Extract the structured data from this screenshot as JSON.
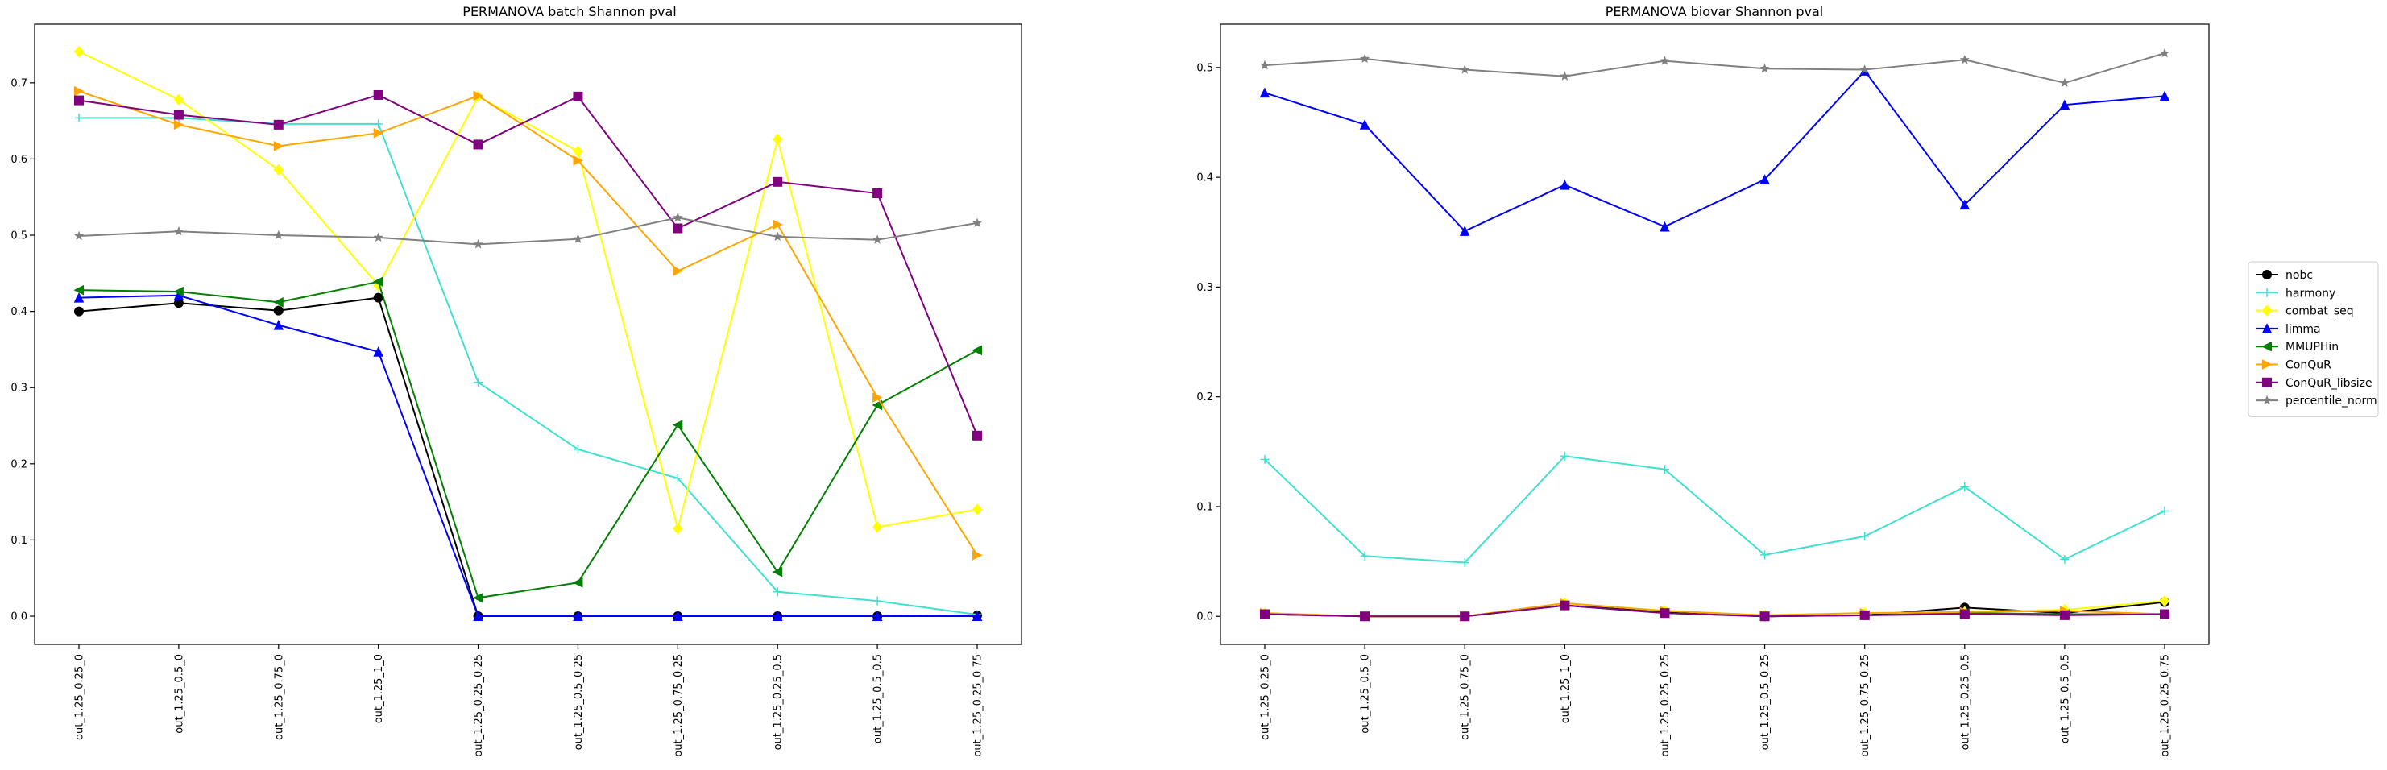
{
  "chart_data": [
    {
      "type": "line",
      "title": "PERMANOVA batch Shannon pval",
      "xlabel": "",
      "ylabel": "",
      "categories": [
        "out_1.25_0.25_0",
        "out_1.25_0.5_0",
        "out_1.25_0.75_0",
        "out_1.25_1_0",
        "out_1.25_0.25_0.25",
        "out_1.25_0.5_0.25",
        "out_1.25_0.75_0.25",
        "out_1.25_0.25_0.5",
        "out_1.25_0.5_0.5",
        "out_1.25_0.25_0.75"
      ],
      "ylim": [
        -0.037,
        0.777
      ],
      "yticks": [
        0.0,
        0.1,
        0.2,
        0.3,
        0.4,
        0.5,
        0.6,
        0.7
      ],
      "ytick_labels": [
        "0.0",
        "0.1",
        "0.2",
        "0.3",
        "0.4",
        "0.5",
        "0.6",
        "0.7"
      ],
      "series": [
        {
          "name": "nobc",
          "color": "#000000",
          "marker": "circle",
          "values": [
            0.4,
            0.411,
            0.401,
            0.418,
            0.0,
            0.0,
            0.0,
            0.0,
            0.0,
            0.001
          ]
        },
        {
          "name": "harmony",
          "color": "#40e0d0",
          "marker": "plus",
          "values": [
            0.654,
            0.654,
            0.646,
            0.646,
            0.307,
            0.219,
            0.181,
            0.032,
            0.02,
            0.002
          ]
        },
        {
          "name": "combat_seq",
          "color": "#ffff00",
          "marker": "diamond",
          "values": [
            0.741,
            0.678,
            0.586,
            0.434,
            0.682,
            0.61,
            0.115,
            0.626,
            0.117,
            0.14
          ]
        },
        {
          "name": "limma",
          "color": "#0000ff",
          "marker": "triangle-up",
          "values": [
            0.418,
            0.421,
            0.382,
            0.347,
            0.0,
            0.0,
            0.0,
            0.0,
            0.0,
            0.0
          ]
        },
        {
          "name": "MMUPHin",
          "color": "#008000",
          "marker": "triangle-left",
          "values": [
            0.428,
            0.426,
            0.412,
            0.439,
            0.024,
            0.044,
            0.251,
            0.058,
            0.277,
            0.349
          ]
        },
        {
          "name": "ConQuR",
          "color": "#ffa500",
          "marker": "triangle-right",
          "values": [
            0.689,
            0.645,
            0.617,
            0.634,
            0.683,
            0.598,
            0.453,
            0.514,
            0.287,
            0.08
          ]
        },
        {
          "name": "ConQuR_libsize",
          "color": "#800080",
          "marker": "square",
          "values": [
            0.677,
            0.658,
            0.645,
            0.684,
            0.619,
            0.682,
            0.509,
            0.57,
            0.555,
            0.237
          ]
        },
        {
          "name": "percentile_norm",
          "color": "#808080",
          "marker": "star",
          "values": [
            0.499,
            0.505,
            0.5,
            0.497,
            0.488,
            0.495,
            0.523,
            0.498,
            0.494,
            0.516
          ]
        }
      ]
    },
    {
      "type": "line",
      "title": "PERMANOVA biovar Shannon pval",
      "xlabel": "",
      "ylabel": "",
      "categories": [
        "out_1.25_0.25_0",
        "out_1.25_0.5_0",
        "out_1.25_0.75_0",
        "out_1.25_1_0",
        "out_1.25_0.25_0.25",
        "out_1.25_0.5_0.25",
        "out_1.25_0.75_0.25",
        "out_1.25_0.25_0.5",
        "out_1.25_0.5_0.5",
        "out_1.25_0.25_0.75"
      ],
      "ylim": [
        -0.0255,
        0.5395
      ],
      "yticks": [
        0.0,
        0.1,
        0.2,
        0.3,
        0.4,
        0.5
      ],
      "ytick_labels": [
        "0.0",
        "0.1",
        "0.2",
        "0.3",
        "0.4",
        "0.5"
      ],
      "series": [
        {
          "name": "nobc",
          "color": "#000000",
          "marker": "circle",
          "values": [
            0.002,
            0.0,
            0.0,
            0.01,
            0.004,
            0.0,
            0.001,
            0.008,
            0.003,
            0.013
          ]
        },
        {
          "name": "harmony",
          "color": "#40e0d0",
          "marker": "plus",
          "values": [
            0.143,
            0.055,
            0.049,
            0.146,
            0.134,
            0.056,
            0.073,
            0.118,
            0.052,
            0.096
          ]
        },
        {
          "name": "combat_seq",
          "color": "#ffff00",
          "marker": "diamond",
          "values": [
            0.003,
            0.0,
            0.0,
            0.012,
            0.005,
            0.001,
            0.003,
            0.004,
            0.006,
            0.014
          ]
        },
        {
          "name": "limma",
          "color": "#0000ff",
          "marker": "triangle-up",
          "values": [
            0.477,
            0.448,
            0.351,
            0.393,
            0.355,
            0.398,
            0.497,
            0.375,
            0.466,
            0.474
          ]
        },
        {
          "name": "MMUPHin",
          "color": "#008000",
          "marker": "triangle-left",
          "values": [
            0.002,
            0.0,
            0.0,
            0.01,
            0.003,
            0.0,
            0.001,
            0.003,
            0.002,
            0.002
          ]
        },
        {
          "name": "ConQuR",
          "color": "#ffa500",
          "marker": "triangle-right",
          "values": [
            0.003,
            0.0,
            0.0,
            0.012,
            0.005,
            0.001,
            0.003,
            0.004,
            0.005,
            0.002
          ]
        },
        {
          "name": "ConQuR_libsize",
          "color": "#800080",
          "marker": "square",
          "values": [
            0.002,
            0.0,
            0.0,
            0.01,
            0.003,
            0.0,
            0.001,
            0.002,
            0.001,
            0.002
          ]
        },
        {
          "name": "percentile_norm",
          "color": "#808080",
          "marker": "star",
          "values": [
            0.502,
            0.508,
            0.498,
            0.492,
            0.506,
            0.499,
            0.498,
            0.507,
            0.486,
            0.513
          ]
        }
      ]
    }
  ],
  "legend": {
    "placement": "right",
    "entries": [
      "nobc",
      "harmony",
      "combat_seq",
      "limma",
      "MMUPHin",
      "ConQuR",
      "ConQuR_libsize",
      "percentile_norm"
    ]
  }
}
